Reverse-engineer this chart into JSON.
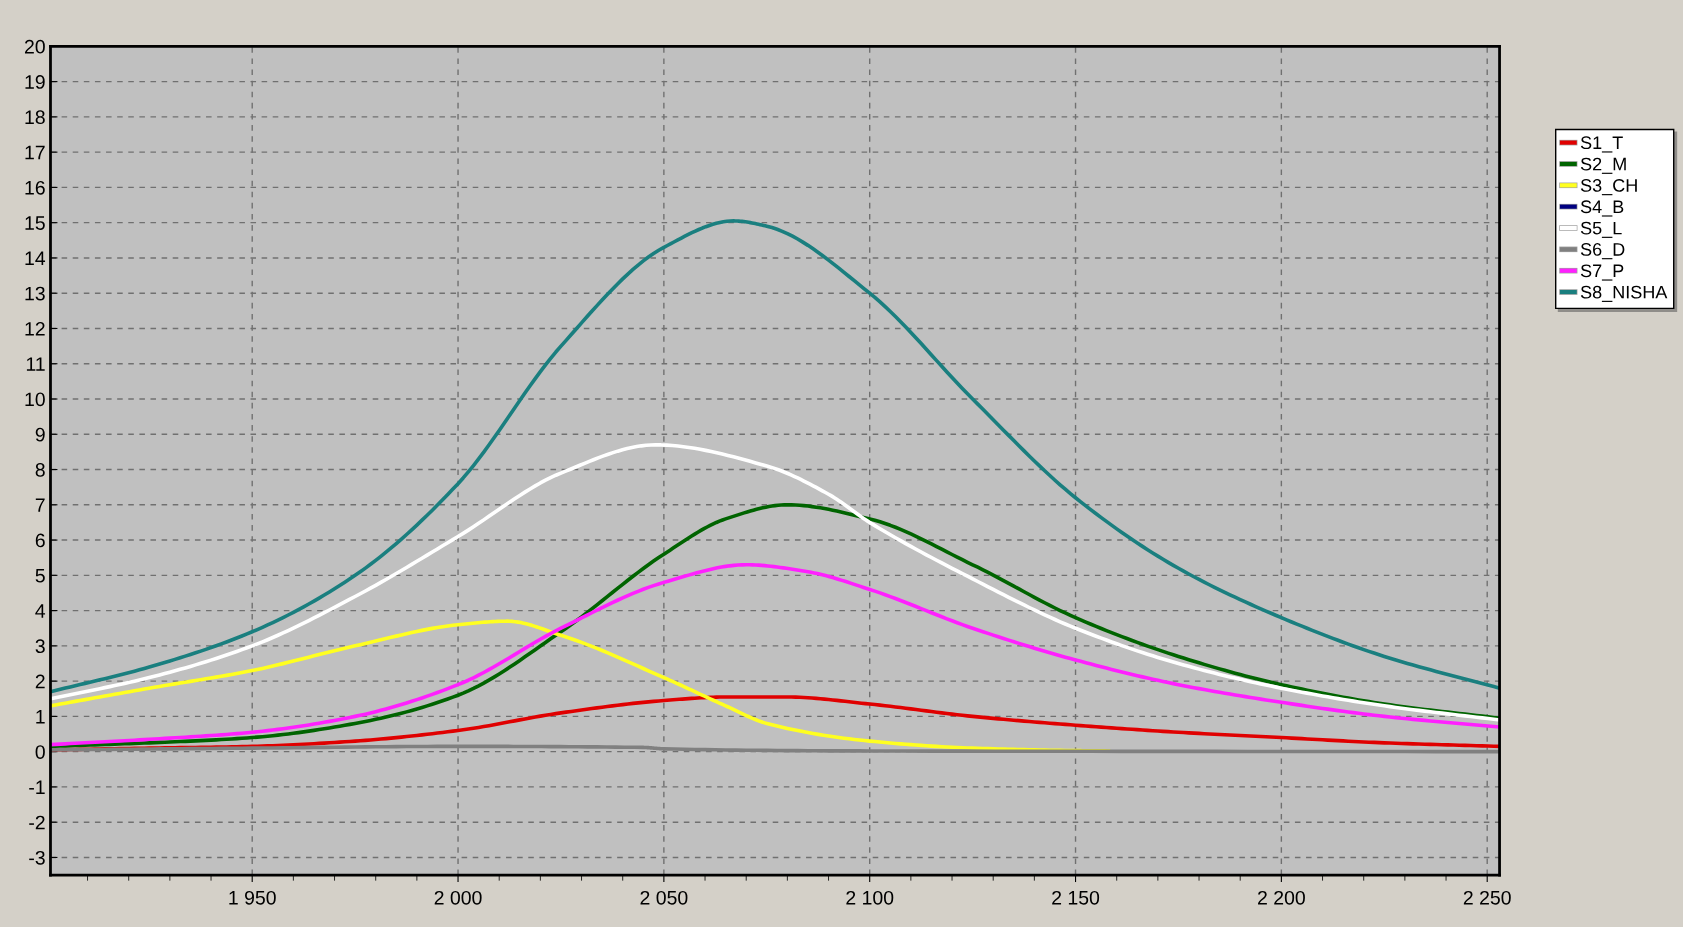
{
  "chart_data": {
    "type": "line",
    "xlim": [
      1901,
      2253
    ],
    "ylim": [
      -3.5,
      20
    ],
    "xticks": [
      {
        "value": 1950,
        "label": "1 950"
      },
      {
        "value": 2000,
        "label": "2 000"
      },
      {
        "value": 2050,
        "label": "2 050"
      },
      {
        "value": 2100,
        "label": "2 100"
      },
      {
        "value": 2150,
        "label": "2 150"
      },
      {
        "value": 2200,
        "label": "2 200"
      },
      {
        "value": 2250,
        "label": "2 250"
      }
    ],
    "yticks": [
      -3,
      -2,
      -1,
      0,
      1,
      2,
      3,
      4,
      5,
      6,
      7,
      8,
      9,
      10,
      11,
      12,
      13,
      14,
      15,
      16,
      17,
      18,
      19,
      20
    ],
    "grid": true,
    "legend": "right",
    "line_style": "solid",
    "marker": "none",
    "series": [
      {
        "name": "S1_T",
        "color": "#e00000",
        "x": [
          1901,
          1925,
          1950,
          1975,
          2000,
          2025,
          2050,
          2065,
          2080,
          2100,
          2125,
          2150,
          2175,
          2200,
          2225,
          2253
        ],
        "values": [
          0.05,
          0.1,
          0.15,
          0.3,
          0.6,
          1.1,
          1.45,
          1.55,
          1.55,
          1.35,
          1.0,
          0.75,
          0.55,
          0.4,
          0.25,
          0.15
        ]
      },
      {
        "name": "S2_M",
        "color": "#006400",
        "x": [
          1901,
          1925,
          1950,
          1975,
          2000,
          2025,
          2050,
          2065,
          2080,
          2100,
          2125,
          2150,
          2175,
          2200,
          2225,
          2253
        ],
        "values": [
          0.15,
          0.25,
          0.4,
          0.8,
          1.6,
          3.4,
          5.6,
          6.6,
          7.0,
          6.6,
          5.3,
          3.8,
          2.7,
          1.9,
          1.35,
          0.95
        ]
      },
      {
        "name": "S3_CH",
        "color": "#ffff20",
        "x": [
          1901,
          1925,
          1950,
          1975,
          2000,
          2012,
          2025,
          2050,
          2065,
          2075,
          2100,
          2125,
          2150,
          2158
        ],
        "values": [
          1.3,
          1.8,
          2.3,
          3.0,
          3.6,
          3.7,
          3.3,
          2.1,
          1.3,
          0.8,
          0.3,
          0.1,
          0.03,
          0.02
        ]
      },
      {
        "name": "S4_B",
        "color": "#000080"
      },
      {
        "name": "S5_L",
        "color": "#ffffff",
        "x": [
          1901,
          1925,
          1950,
          1975,
          2000,
          2025,
          2048,
          2075,
          2090,
          2100,
          2125,
          2150,
          2175,
          2200,
          2225,
          2253
        ],
        "values": [
          1.5,
          2.1,
          3.0,
          4.4,
          6.1,
          7.9,
          8.7,
          8.1,
          7.3,
          6.5,
          4.9,
          3.5,
          2.5,
          1.8,
          1.3,
          0.9
        ]
      },
      {
        "name": "S6_D",
        "color": "#808080",
        "x": [
          1901,
          1950,
          2000,
          2045,
          2050,
          2100,
          2253
        ],
        "values": [
          0.05,
          0.1,
          0.15,
          0.12,
          0.08,
          0.02,
          0.0
        ]
      },
      {
        "name": "S7_P",
        "color": "#ff20ff",
        "x": [
          1901,
          1925,
          1950,
          1975,
          2000,
          2025,
          2050,
          2070,
          2085,
          2100,
          2125,
          2150,
          2175,
          2200,
          2225,
          2253
        ],
        "values": [
          0.2,
          0.35,
          0.55,
          1.0,
          1.9,
          3.5,
          4.8,
          5.3,
          5.1,
          4.6,
          3.5,
          2.6,
          1.9,
          1.4,
          1.0,
          0.7
        ]
      },
      {
        "name": "S8_NISHA",
        "color": "#1a7f7f",
        "x": [
          1901,
          1925,
          1950,
          1975,
          2000,
          2025,
          2050,
          2067,
          2075,
          2100,
          2125,
          2150,
          2175,
          2200,
          2225,
          2253
        ],
        "values": [
          1.7,
          2.4,
          3.4,
          5.0,
          7.6,
          11.5,
          14.3,
          15.05,
          14.9,
          13.0,
          10.0,
          7.2,
          5.2,
          3.8,
          2.7,
          1.8
        ]
      }
    ]
  }
}
